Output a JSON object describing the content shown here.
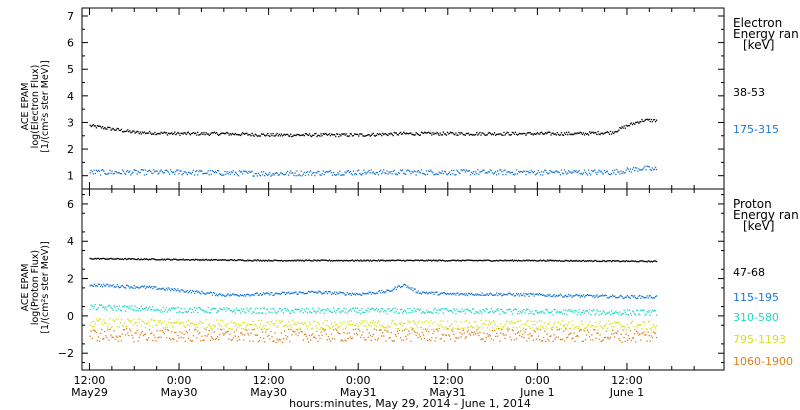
{
  "chart_data": [
    {
      "type": "scatter",
      "panel": "electron",
      "ylabel_lines": [
        "ACE EPAM",
        "log(Electron Flux)",
        "[1/(cm²s ster MeV)]"
      ],
      "ylim": [
        0.5,
        7.3
      ],
      "yticks": [
        1,
        2,
        3,
        4,
        5,
        6,
        7
      ],
      "legend_title_lines": [
        "Electron",
        "Energy ran",
        "[keV]"
      ],
      "series": [
        {
          "name": "38-53",
          "color": "#000000",
          "x": [
            0,
            6,
            12,
            18,
            24,
            30,
            36,
            42,
            48,
            54,
            60,
            66,
            70,
            72,
            74,
            76
          ],
          "y": [
            2.9,
            2.65,
            2.6,
            2.6,
            2.55,
            2.55,
            2.55,
            2.6,
            2.6,
            2.6,
            2.6,
            2.6,
            2.65,
            2.9,
            3.1,
            3.1
          ]
        },
        {
          "name": "175-315",
          "color": "#1a78d0",
          "x": [
            0,
            12,
            24,
            36,
            48,
            60,
            70,
            74,
            76
          ],
          "y": [
            1.15,
            1.15,
            1.1,
            1.15,
            1.15,
            1.15,
            1.15,
            1.3,
            1.25
          ]
        }
      ]
    },
    {
      "type": "scatter",
      "panel": "proton",
      "ylabel_lines": [
        "ACE EPAM",
        "log(Proton Flux)",
        "[1/(cm²s ster MeV)]"
      ],
      "ylim": [
        -2.9,
        6.8
      ],
      "yticks": [
        -2,
        0,
        2,
        4,
        6
      ],
      "legend_title_lines": [
        "Proton",
        "Energy ran",
        "[keV]"
      ],
      "series": [
        {
          "name": "47-68",
          "color": "#000000",
          "x": [
            0,
            12,
            24,
            36,
            48,
            60,
            76
          ],
          "y": [
            3.1,
            3.05,
            3.0,
            3.0,
            3.0,
            3.0,
            2.95
          ]
        },
        {
          "name": "115-195",
          "color": "#1a78d0",
          "x": [
            0,
            8,
            12,
            18,
            24,
            30,
            36,
            40,
            42,
            44,
            48,
            54,
            60,
            66,
            72,
            76
          ],
          "y": [
            1.7,
            1.55,
            1.4,
            1.15,
            1.2,
            1.3,
            1.2,
            1.35,
            1.7,
            1.3,
            1.2,
            1.2,
            1.15,
            1.1,
            1.05,
            1.05
          ]
        },
        {
          "name": "310-580",
          "color": "#20d8c8",
          "x": [
            0,
            12,
            24,
            36,
            48,
            60,
            76
          ],
          "y": [
            0.5,
            0.35,
            0.3,
            0.3,
            0.3,
            0.25,
            0.2
          ]
        },
        {
          "name": "795-1193",
          "color": "#d8e020",
          "x": [
            0,
            12,
            24,
            36,
            48,
            60,
            76
          ],
          "y": [
            -0.35,
            -0.4,
            -0.45,
            -0.45,
            -0.45,
            -0.45,
            -0.5
          ]
        },
        {
          "name": "1060-1900",
          "color": "#e0801a",
          "x": [
            0,
            12,
            24,
            36,
            48,
            60,
            76
          ],
          "y": [
            -1.0,
            -1.0,
            -1.05,
            -1.0,
            -1.0,
            -1.0,
            -1.05
          ]
        }
      ]
    }
  ],
  "x_axis": {
    "ticks": [
      {
        "hour": 0,
        "label": "12:00",
        "sub": "May29"
      },
      {
        "hour": 12,
        "label": "0:00",
        "sub": "May30"
      },
      {
        "hour": 24,
        "label": "12:00",
        "sub": "May30"
      },
      {
        "hour": 36,
        "label": "0:00",
        "sub": "May31"
      },
      {
        "hour": 48,
        "label": "12:00",
        "sub": "May31"
      },
      {
        "hour": 60,
        "label": "0:00",
        "sub": "June 1"
      },
      {
        "hour": 72,
        "label": "12:00",
        "sub": "June 1"
      }
    ],
    "xlabel": "hours:minutes, May 29, 2014 - June  1, 2014"
  }
}
